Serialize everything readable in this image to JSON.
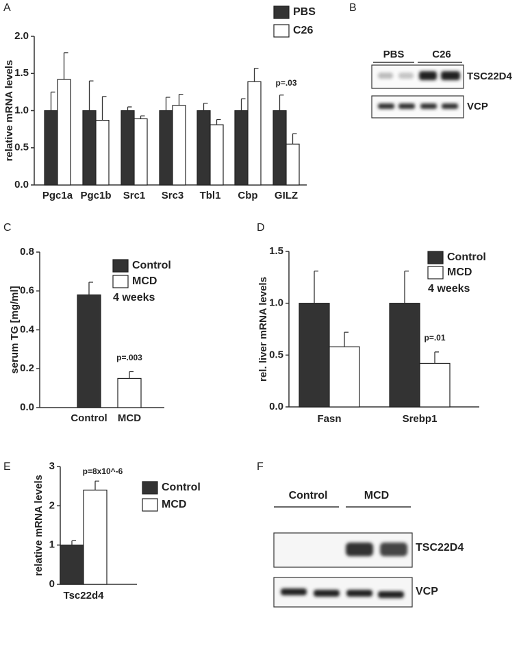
{
  "chart_data": [
    {
      "panel": "A",
      "type": "bar",
      "ylabel": "relative mRNA levels",
      "categories": [
        "Pgc1a",
        "Pgc1b",
        "Src1",
        "Src3",
        "Tbl1",
        "Cbp",
        "GILZ"
      ],
      "series": [
        {
          "name": "PBS",
          "color": "#333333",
          "values": [
            1.0,
            1.0,
            1.0,
            1.0,
            1.0,
            1.0,
            1.0
          ],
          "errors": [
            0.25,
            0.4,
            0.05,
            0.18,
            0.1,
            0.16,
            0.21
          ]
        },
        {
          "name": "C26",
          "color": "#ffffff",
          "values": [
            1.42,
            0.87,
            0.89,
            1.07,
            0.81,
            1.39,
            0.55
          ],
          "errors": [
            0.36,
            0.32,
            0.04,
            0.15,
            0.07,
            0.18,
            0.14
          ]
        }
      ],
      "ylim": [
        0,
        2
      ],
      "yticks": [
        {
          "value": 0,
          "label": "0.0"
        },
        {
          "value": 0.5,
          "label": "0.5"
        },
        {
          "value": 1,
          "label": "1.0"
        },
        {
          "value": 1.5,
          "label": "1.5"
        },
        {
          "value": 2,
          "label": "2.0"
        }
      ],
      "annotations": [
        "p=.03"
      ]
    },
    {
      "panel": "C",
      "type": "bar",
      "ylabel": "serum TG [mg/ml]",
      "categories": [
        "Control",
        "MCD"
      ],
      "series": [
        {
          "name": "Control",
          "color": "#333333",
          "values": [
            0.58,
            null
          ],
          "errors": [
            0.065,
            null
          ]
        },
        {
          "name": "MCD",
          "color": "#ffffff",
          "values": [
            null,
            0.15
          ],
          "errors": [
            null,
            0.035
          ]
        }
      ],
      "ylim": [
        0,
        0.8
      ],
      "yticks": [
        {
          "value": 0,
          "label": "0.0"
        },
        {
          "value": 0.2,
          "label": "0.2"
        },
        {
          "value": 0.4,
          "label": "0.4"
        },
        {
          "value": 0.6,
          "label": "0.6"
        },
        {
          "value": 0.8,
          "label": "0.8"
        }
      ],
      "annotations": [
        "p=.003"
      ],
      "note": "4 weeks"
    },
    {
      "panel": "D",
      "type": "bar",
      "ylabel": "rel. liver mRNA levels",
      "categories": [
        "Fasn",
        "Srebp1"
      ],
      "series": [
        {
          "name": "Control",
          "color": "#333333",
          "values": [
            1.0,
            1.0
          ],
          "errors": [
            0.31,
            0.31
          ]
        },
        {
          "name": "MCD",
          "color": "#ffffff",
          "values": [
            0.58,
            0.42
          ],
          "errors": [
            0.14,
            0.11
          ]
        }
      ],
      "ylim": [
        0,
        1.5
      ],
      "yticks": [
        {
          "value": 0,
          "label": "0.0"
        },
        {
          "value": 0.5,
          "label": "0.5"
        },
        {
          "value": 1,
          "label": "1.0"
        },
        {
          "value": 1.5,
          "label": "1.5"
        }
      ],
      "annotations": [
        "p=.01"
      ],
      "note": "4 weeks"
    },
    {
      "panel": "E",
      "type": "bar",
      "ylabel": "relative mRNA levels",
      "categories": [
        "Tsc22d4"
      ],
      "series": [
        {
          "name": "Control",
          "color": "#333333",
          "values": [
            1.0
          ],
          "errors": [
            0.11
          ]
        },
        {
          "name": "MCD",
          "color": "#ffffff",
          "values": [
            2.4
          ],
          "errors": [
            0.23
          ]
        }
      ],
      "ylim": [
        0,
        3
      ],
      "yticks": [
        0,
        1,
        2,
        3
      ],
      "annotations": [
        "p=8x10^-6"
      ]
    }
  ],
  "blots": [
    {
      "panel": "B",
      "groups": [
        "PBS",
        "C26"
      ],
      "bands": [
        "TSC22D4",
        "VCP"
      ]
    },
    {
      "panel": "F",
      "groups": [
        "Control",
        "MCD"
      ],
      "bands": [
        "TSC22D4",
        "VCP"
      ]
    }
  ]
}
